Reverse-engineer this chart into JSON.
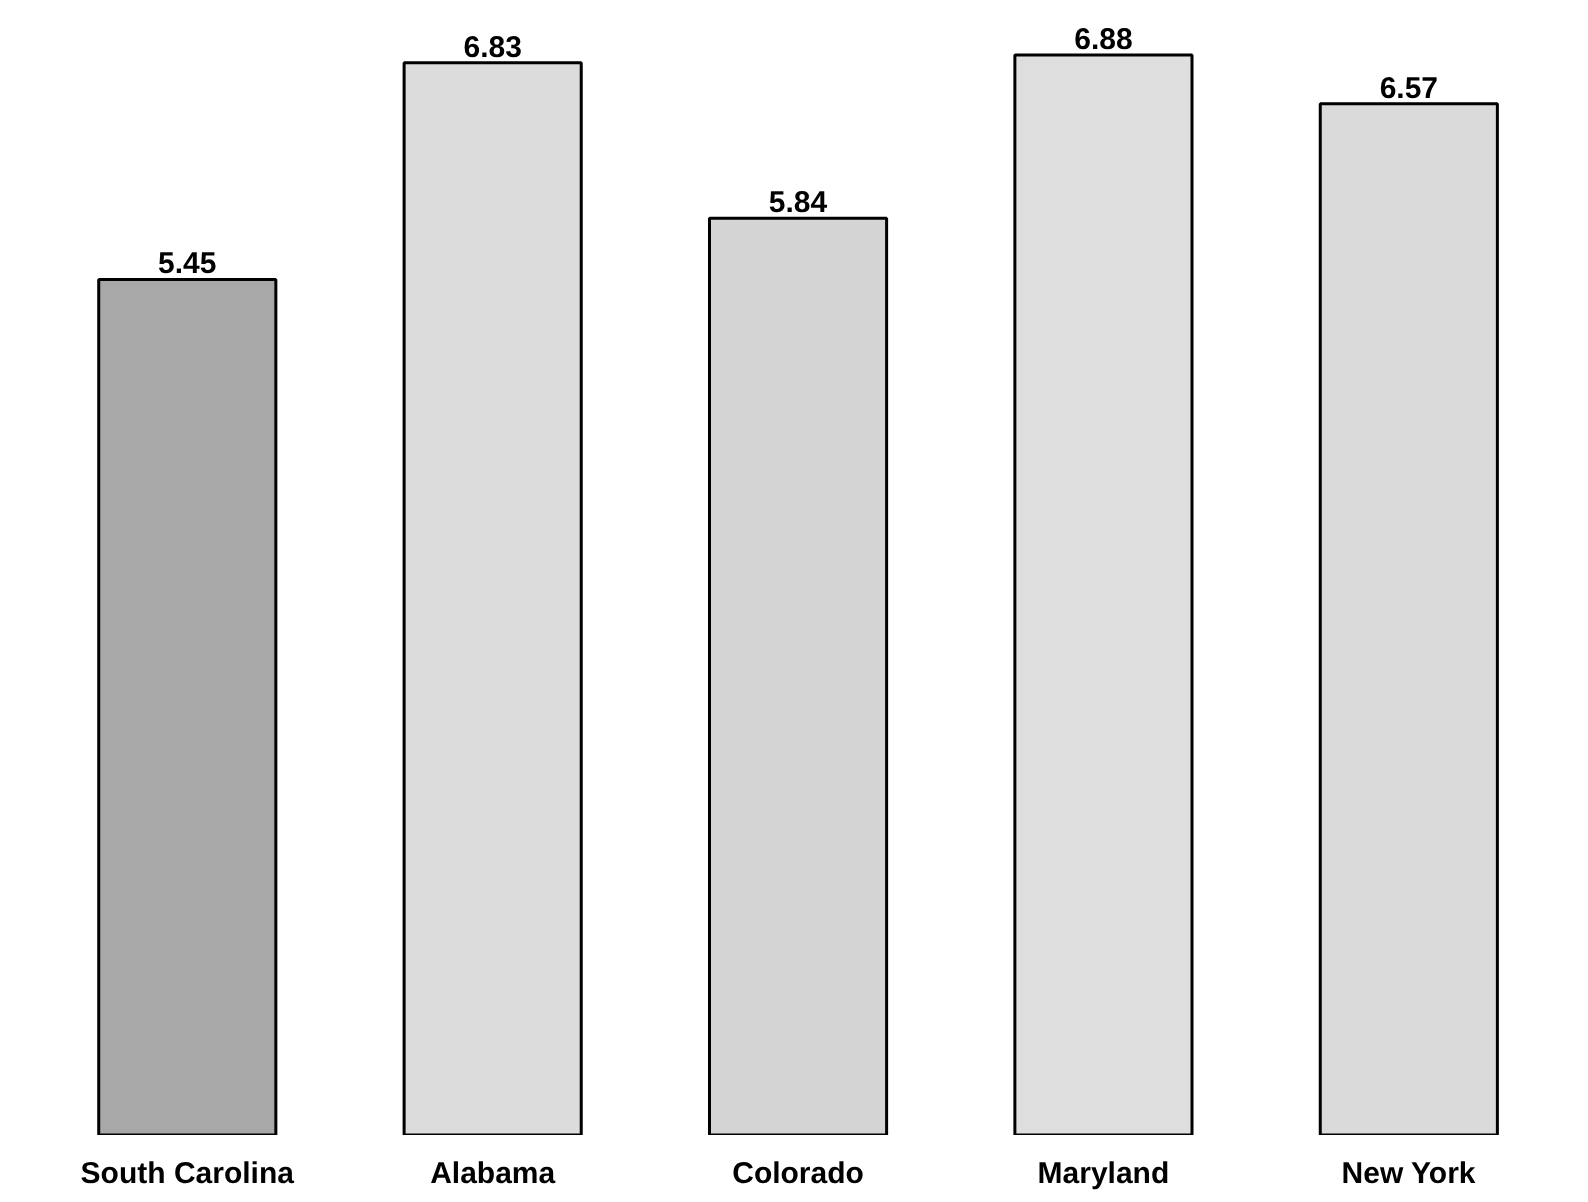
{
  "chart_data": {
    "type": "bar",
    "categories": [
      "South Carolina",
      "Alabama",
      "Colorado",
      "Maryland",
      "New York"
    ],
    "values": [
      5.45,
      6.83,
      5.84,
      6.88,
      6.57
    ],
    "colors": [
      "#a8a8a8",
      "#dcdcdc",
      "#d4d4d4",
      "#dedede",
      "#dadada"
    ],
    "data_labels": true,
    "grid": false
  }
}
